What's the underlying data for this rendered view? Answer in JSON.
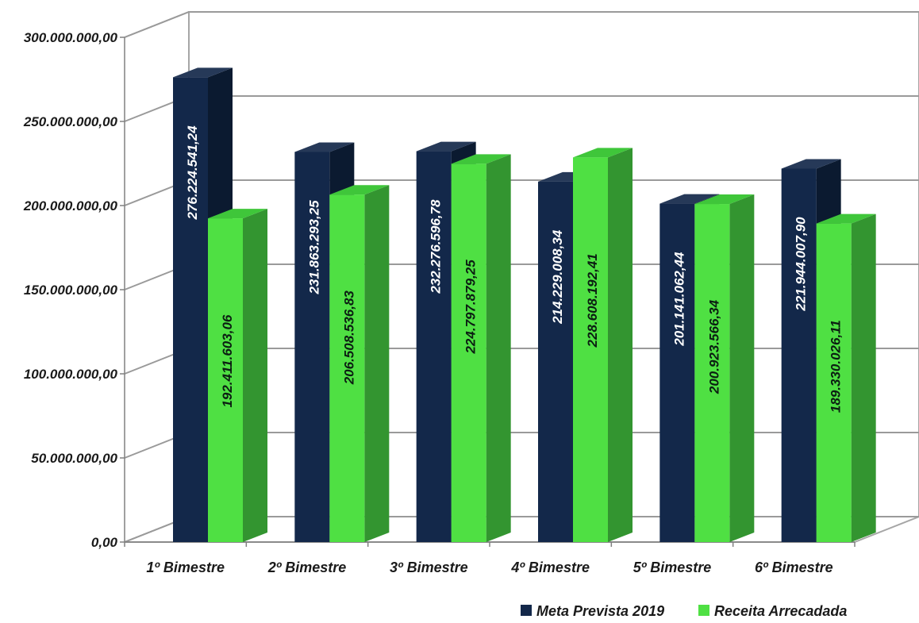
{
  "chart_data": {
    "type": "bar",
    "title": "",
    "xlabel": "",
    "ylabel": "",
    "ylim": [
      0,
      300000000
    ],
    "y_ticks": [
      0,
      50000000,
      100000000,
      150000000,
      200000000,
      250000000,
      300000000
    ],
    "y_tick_labels": [
      "0,00",
      "50.000.000,00",
      "100.000.000,00",
      "150.000.000,00",
      "200.000.000,00",
      "250.000.000,00",
      "300.000.000,00"
    ],
    "categories": [
      "1º Bimestre",
      "2º Bimestre",
      "3º Bimestre",
      "4º Bimestre",
      "5º Bimestre",
      "6º Bimestre"
    ],
    "grid": true,
    "style": "3d-clustered-column",
    "legend_position": "bottom-right",
    "series": [
      {
        "name": "Meta Prevista 2019",
        "color": "#13284a",
        "values": [
          276224541.24,
          231863293.25,
          232276596.78,
          214229008.34,
          201141062.44,
          221944007.9
        ],
        "labels": [
          "276.224.541,24",
          "231.863.293,25",
          "232.276.596,78",
          "214.229.008,34",
          "201.141.062,44",
          "221.944.007,90"
        ]
      },
      {
        "name": "Receita Arrecadada",
        "color": "#4fe043",
        "values": [
          192411603.06,
          206508536.83,
          224797879.25,
          228608192.41,
          200923566.34,
          189330026.11
        ],
        "labels": [
          "192.411.603,06",
          "206.508.536,83",
          "224.797.879,25",
          "228.608.192,41",
          "200.923.566,34",
          "189.330.026,11"
        ]
      }
    ]
  }
}
